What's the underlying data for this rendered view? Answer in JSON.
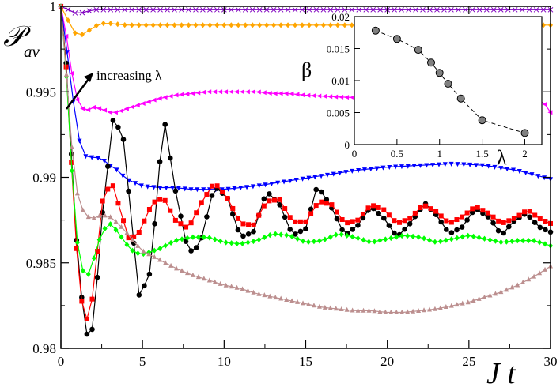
{
  "chart_data": [
    {
      "type": "line",
      "title": "",
      "xlabel": "J t",
      "ylabel": "𝒫 av",
      "ylabel_main": "𝒫",
      "ylabel_sub": "av",
      "xlim": [
        0,
        30
      ],
      "ylim": [
        0.98,
        1.0
      ],
      "xticks": [
        0,
        5,
        10,
        15,
        20,
        25,
        30
      ],
      "yticks": [
        0.98,
        0.985,
        0.99,
        0.995,
        1.0
      ],
      "xtick_labels": [
        "0",
        "5",
        "10",
        "15",
        "20",
        "25",
        "30"
      ],
      "ytick_labels": [
        "0.98",
        "0.985",
        "0.99",
        "0.995",
        "1"
      ],
      "grid": false,
      "annotation": "increasing λ",
      "series": [
        {
          "color": "#8000c0",
          "marker": "x",
          "x": [
            0,
            0.3,
            0.6,
            0.9,
            1.2,
            1.6,
            2.0,
            2.5,
            3,
            4,
            5,
            7,
            10,
            15,
            20,
            25,
            30
          ],
          "y": [
            1.0,
            0.9999,
            0.9997,
            0.9996,
            0.9996,
            0.9997,
            0.9998,
            0.9998,
            0.9998,
            0.9998,
            0.9998,
            0.9998,
            0.9998,
            0.9998,
            0.9998,
            0.9998,
            0.9998
          ]
        },
        {
          "color": "#ffa500",
          "marker": "diamond",
          "x": [
            0,
            0.3,
            0.6,
            0.9,
            1.2,
            1.6,
            2.0,
            2.5,
            3,
            4,
            5,
            7,
            10,
            15,
            20,
            25,
            30
          ],
          "y": [
            1.0,
            0.9995,
            0.9988,
            0.9984,
            0.9983,
            0.9985,
            0.9988,
            0.999,
            0.999,
            0.9989,
            0.9989,
            0.9989,
            0.9989,
            0.9989,
            0.9989,
            0.9989,
            0.9989
          ]
        },
        {
          "color": "#ff00ff",
          "marker": "triangle-left",
          "x": [
            0,
            0.3,
            0.6,
            0.9,
            1.2,
            1.6,
            2.0,
            2.5,
            3,
            3.5,
            4,
            5,
            6,
            7,
            8,
            9,
            10,
            11,
            12,
            13,
            14,
            15,
            17,
            20,
            22,
            25,
            28,
            29.5,
            30
          ],
          "y": [
            1.0,
            0.9985,
            0.9965,
            0.9948,
            0.9941,
            0.9939,
            0.9941,
            0.994,
            0.9938,
            0.9938,
            0.994,
            0.9943,
            0.9946,
            0.9948,
            0.9949,
            0.995,
            0.995,
            0.995,
            0.995,
            0.9949,
            0.9949,
            0.9948,
            0.9947,
            0.9946,
            0.9946,
            0.9946,
            0.9945,
            0.9945,
            0.9938
          ]
        },
        {
          "color": "#0000ff",
          "marker": "triangle-down",
          "x": [
            0,
            0.3,
            0.6,
            0.9,
            1.2,
            1.6,
            2.0,
            2.5,
            3,
            3.5,
            4,
            5,
            6,
            7,
            8,
            9,
            10,
            12,
            14,
            16,
            18,
            20,
            22,
            24,
            26,
            28,
            30
          ],
          "y": [
            1.0,
            0.998,
            0.9955,
            0.9935,
            0.9918,
            0.9911,
            0.9912,
            0.9911,
            0.9907,
            0.9904,
            0.9899,
            0.9895,
            0.9894,
            0.9894,
            0.9893,
            0.9893,
            0.9893,
            0.9895,
            0.9898,
            0.9901,
            0.9904,
            0.9906,
            0.9907,
            0.9908,
            0.9907,
            0.9904,
            0.9899
          ]
        },
        {
          "color": "#000000",
          "marker": "circle",
          "x": [
            0,
            0.3,
            0.6,
            0.9,
            1.2,
            1.6,
            2.0,
            2.5,
            3.2,
            3.8,
            4.4,
            4.8,
            5.5,
            6.3,
            7.0,
            7.8,
            8.5,
            9.4,
            10.2,
            11.0,
            11.8,
            12.6,
            13.4,
            14.2,
            15.0,
            15.7,
            16.5,
            17.4,
            18.2,
            19.0,
            19.8,
            20.6,
            21.4,
            22.3,
            23.0,
            23.8,
            24.6,
            25.4,
            26.3,
            27.0,
            27.7,
            28.5,
            29.3,
            30
          ],
          "y": [
            1.0,
            0.997,
            0.992,
            0.987,
            0.9835,
            0.9808,
            0.9812,
            0.9875,
            0.9934,
            0.9925,
            0.9868,
            0.983,
            0.9845,
            0.9936,
            0.9893,
            0.9856,
            0.986,
            0.9895,
            0.9888,
            0.9865,
            0.9868,
            0.9892,
            0.9884,
            0.9866,
            0.987,
            0.9895,
            0.9884,
            0.9866,
            0.9872,
            0.9883,
            0.9876,
            0.9865,
            0.9873,
            0.9885,
            0.9878,
            0.9867,
            0.9871,
            0.9882,
            0.9876,
            0.9866,
            0.9874,
            0.9879,
            0.9871,
            0.9868
          ]
        },
        {
          "color": "#ff0000",
          "marker": "square",
          "x": [
            0,
            0.3,
            0.6,
            0.9,
            1.2,
            1.6,
            2.0,
            2.5,
            3.1,
            3.6,
            4.2,
            4.8,
            5.6,
            6.3,
            7.0,
            7.8,
            8.6,
            9.4,
            10.2,
            11.0,
            11.8,
            12.6,
            13.4,
            14.2,
            15.0,
            15.8,
            16.6,
            17.4,
            18.2,
            19.0,
            19.8,
            20.6,
            21.4,
            22.2,
            23.0,
            23.8,
            24.6,
            25.4,
            26.2,
            27.0,
            27.8,
            28.6,
            29.3,
            30
          ],
          "y": [
            1.0,
            0.9968,
            0.9915,
            0.9865,
            0.983,
            0.9817,
            0.9832,
            0.9885,
            0.9898,
            0.9882,
            0.9863,
            0.9868,
            0.9885,
            0.9888,
            0.9875,
            0.987,
            0.9885,
            0.9897,
            0.9888,
            0.9873,
            0.9872,
            0.9886,
            0.9887,
            0.9874,
            0.9874,
            0.9886,
            0.9884,
            0.9873,
            0.9875,
            0.9884,
            0.9881,
            0.9873,
            0.9876,
            0.9884,
            0.988,
            0.9873,
            0.9877,
            0.9883,
            0.9879,
            0.9873,
            0.9876,
            0.9881,
            0.9876,
            0.9873
          ]
        },
        {
          "color": "#00ff00",
          "marker": "diamond",
          "x": [
            0,
            0.3,
            0.6,
            0.9,
            1.2,
            1.6,
            2.0,
            2.5,
            3.0,
            3.5,
            4.0,
            4.5,
            5.0,
            6.0,
            7.0,
            8.0,
            9.0,
            10.0,
            11.0,
            12.0,
            13.0,
            14.0,
            15.0,
            16.0,
            17.0,
            18.0,
            19.0,
            20.0,
            21.0,
            22.0,
            23.0,
            24.0,
            25.0,
            26.0,
            27.0,
            28.0,
            29.0,
            30.0
          ],
          "y": [
            1.0,
            0.9965,
            0.9915,
            0.987,
            0.9848,
            0.9841,
            0.9852,
            0.9868,
            0.9873,
            0.9868,
            0.9861,
            0.9856,
            0.9855,
            0.9858,
            0.9863,
            0.9865,
            0.9865,
            0.9862,
            0.9861,
            0.9863,
            0.9867,
            0.9866,
            0.9862,
            0.9863,
            0.9867,
            0.9865,
            0.9862,
            0.9864,
            0.9866,
            0.9865,
            0.9862,
            0.9864,
            0.9866,
            0.9864,
            0.9862,
            0.9863,
            0.9863,
            0.986
          ]
        },
        {
          "color": "#bc8f8f",
          "marker": "triangle-up",
          "x": [
            0,
            0.3,
            0.6,
            0.9,
            1.2,
            1.6,
            2.0,
            2.5,
            3.0,
            3.5,
            4.0,
            4.5,
            5.0,
            6.0,
            7.0,
            8.0,
            9.0,
            10.0,
            11.0,
            12.0,
            13.0,
            14.0,
            15.0,
            16.0,
            17.0,
            18.0,
            19.0,
            20.0,
            21.0,
            22.0,
            23.0,
            24.0,
            25.0,
            26.0,
            27.0,
            28.0,
            29.0,
            30.0
          ],
          "y": [
            1.0,
            0.9965,
            0.9925,
            0.9895,
            0.9883,
            0.9877,
            0.9876,
            0.9878,
            0.9877,
            0.9873,
            0.9868,
            0.9862,
            0.9857,
            0.9852,
            0.9847,
            0.9843,
            0.984,
            0.9837,
            0.9835,
            0.9832,
            0.983,
            0.9828,
            0.9826,
            0.9824,
            0.9823,
            0.9822,
            0.9822,
            0.9821,
            0.9821,
            0.9822,
            0.9823,
            0.9825,
            0.9827,
            0.983,
            0.9833,
            0.9837,
            0.9842,
            0.9848
          ]
        }
      ]
    },
    {
      "type": "scatter",
      "title": "",
      "xlabel": "λ",
      "ylabel": "β",
      "xlim": [
        0,
        2.2
      ],
      "ylim": [
        0,
        0.02
      ],
      "xticks": [
        0,
        0.5,
        1,
        1.5,
        2
      ],
      "yticks": [
        0,
        0.005,
        0.01,
        0.015,
        0.02
      ],
      "xtick_labels": [
        "0",
        "0.5",
        "1",
        "1.5",
        "2"
      ],
      "ytick_labels": [
        "0",
        "0.005",
        "0.01",
        "0.015",
        "0.02"
      ],
      "grid": false,
      "line_style": "dashed",
      "marker_color": "#808080",
      "x": [
        0.25,
        0.5,
        0.75,
        0.9,
        1.0,
        1.1,
        1.25,
        1.5,
        2.0
      ],
      "y": [
        0.0178,
        0.0165,
        0.0148,
        0.0128,
        0.0112,
        0.0095,
        0.0072,
        0.0038,
        0.0018
      ]
    }
  ]
}
